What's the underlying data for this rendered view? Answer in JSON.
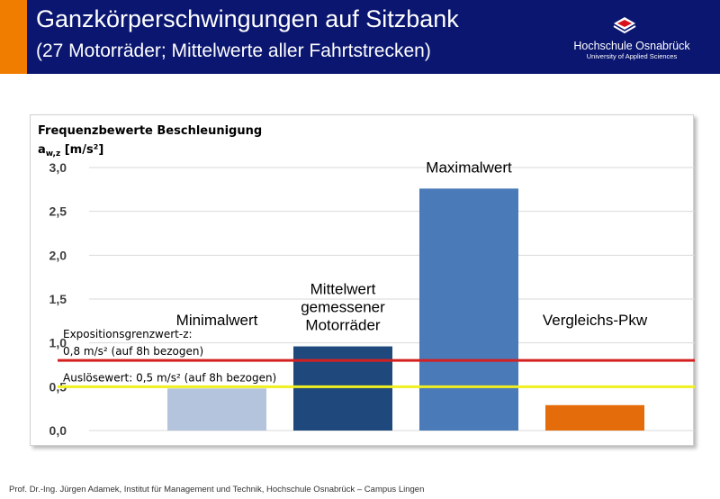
{
  "header": {
    "title": "Ganzkörperschwingungen auf Sitzbank",
    "subtitle": "(27 Motorräder; Mittelwerte aller Fahrtstrecken)",
    "logo_name": "Hochschule Osnabrück",
    "logo_sub": "University of Applied Sciences",
    "bg_color": "#0a1670",
    "accent_color": "#f07d00"
  },
  "footer": {
    "text": "Prof. Dr.-Ing. Jürgen Adamek,  Institut für Management und Technik, Hochschule Osnabrück – Campus Lingen"
  },
  "chart_data": {
    "type": "bar",
    "title": "",
    "ylabel_line1": "Frequenzbewerte Beschleunigung",
    "ylabel_line2_main": "a",
    "ylabel_line2_sub": "w,z",
    "ylabel_line2_unit": " [m/s²]",
    "ylim": [
      0,
      3.0
    ],
    "yticks": [
      "0,0",
      "0,5",
      "1,0",
      "1,5",
      "2,0",
      "2,5",
      "3,0"
    ],
    "grid": true,
    "categories": [
      "Minimalwert",
      "Mittelwert gemessener Motorräder",
      "Maximalwert",
      "Vergleichs-Pkw"
    ],
    "category_label_lines": [
      [
        "Minimalwert"
      ],
      [
        "Mittelwert",
        "gemessener",
        "Motorräder"
      ],
      [
        "Maximalwert"
      ],
      [
        "Vergleichs-Pkw"
      ]
    ],
    "values": [
      0.48,
      0.96,
      2.76,
      0.29
    ],
    "colors": [
      "#b4c4dc",
      "#1f497d",
      "#4a7ab8",
      "#e46c0a"
    ],
    "reference_lines": [
      {
        "value": 0.8,
        "color": "#d42020",
        "label_lines": [
          "Expositionsgrenzwert-z:",
          "0,8 m/s² (auf 8h bezogen)"
        ]
      },
      {
        "value": 0.5,
        "color": "#f0f020",
        "label_lines": [
          "Auslösewert: 0,5 m/s² (auf 8h bezogen)"
        ]
      }
    ]
  }
}
